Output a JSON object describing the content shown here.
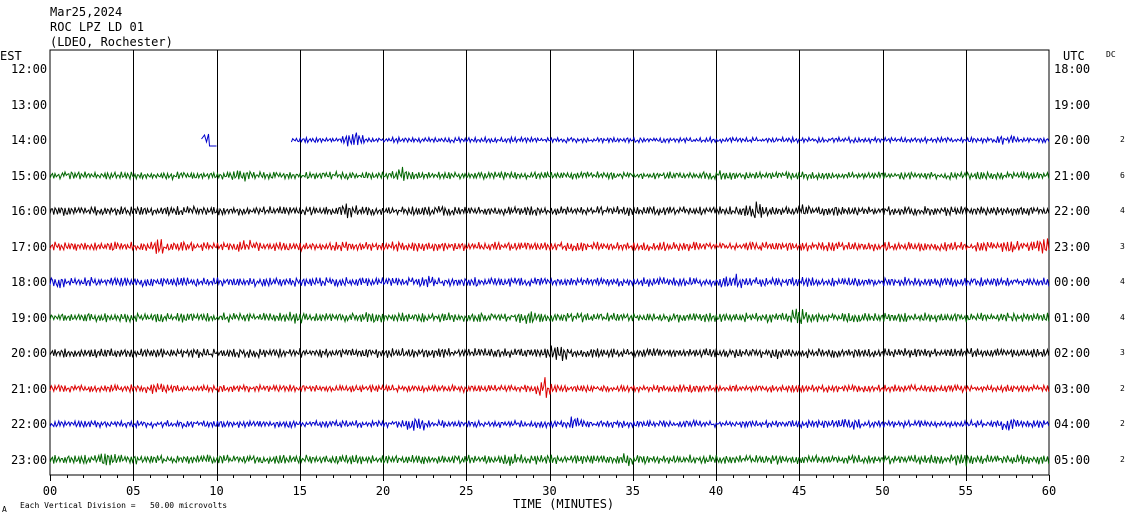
{
  "header": {
    "date": "Mar25,2024",
    "station": "ROC LPZ LD 01",
    "network": "(LDEO, Rochester)"
  },
  "left_axis_title": "EST",
  "right_axis_title": "UTC",
  "dc_label": "DC",
  "footer": {
    "corner_mark": "A",
    "scale_note": "Each Vertical Division =   50.00 microvolts"
  },
  "chart_data": {
    "type": "line",
    "title": "ROC LPZ LD 01",
    "xlabel": "TIME (MINUTES)",
    "xlim": [
      0,
      60
    ],
    "x_ticks": [
      "00",
      "05",
      "10",
      "15",
      "20",
      "25",
      "30",
      "35",
      "40",
      "45",
      "50",
      "55",
      "60"
    ],
    "grid": true,
    "trace_colors": [
      "#0000cc",
      "#006600",
      "#000000",
      "#dd0000"
    ],
    "rows": [
      {
        "est": "12:00",
        "utc": "18:00",
        "count": "",
        "color": "",
        "start": null,
        "end": null,
        "amplitude": 0,
        "events": []
      },
      {
        "est": "13:00",
        "utc": "19:00",
        "count": "",
        "color": "",
        "start": null,
        "end": null,
        "amplitude": 0,
        "events": []
      },
      {
        "est": "14:00",
        "utc": "20:00",
        "count": "2",
        "color": "#0000cc",
        "start": 14.5,
        "end": 60,
        "amplitude": 3,
        "segments": [
          [
            9.1,
            10.0
          ]
        ],
        "events": [
          [
            18.2,
            10
          ],
          [
            57.5,
            6
          ]
        ]
      },
      {
        "est": "15:00",
        "utc": "21:00",
        "count": "6",
        "color": "#006600",
        "start": 0,
        "end": 60,
        "amplitude": 4,
        "events": [
          [
            21.2,
            9
          ],
          [
            11.5,
            7
          ],
          [
            40.5,
            6
          ]
        ]
      },
      {
        "est": "16:00",
        "utc": "22:00",
        "count": "4",
        "color": "#000000",
        "start": 0,
        "end": 60,
        "amplitude": 5,
        "events": [
          [
            42.5,
            11
          ],
          [
            17.8,
            8
          ],
          [
            45.2,
            7
          ]
        ]
      },
      {
        "est": "17:00",
        "utc": "23:00",
        "count": "3",
        "color": "#dd0000",
        "start": 0,
        "end": 60,
        "amplitude": 5,
        "events": [
          [
            6.5,
            9
          ],
          [
            11.7,
            10
          ],
          [
            57.5,
            8
          ],
          [
            59.8,
            9
          ]
        ]
      },
      {
        "est": "18:00",
        "utc": "00:00",
        "count": "4",
        "color": "#0000cc",
        "start": 0,
        "end": 60,
        "amplitude": 5,
        "events": [
          [
            40.9,
            11
          ],
          [
            22.8,
            8
          ],
          [
            0.5,
            7
          ]
        ]
      },
      {
        "est": "19:00",
        "utc": "01:00",
        "count": "4",
        "color": "#006600",
        "start": 0,
        "end": 60,
        "amplitude": 5,
        "events": [
          [
            45.0,
            11
          ],
          [
            14.8,
            8
          ],
          [
            28.5,
            8
          ],
          [
            19.5,
            7
          ]
        ]
      },
      {
        "est": "20:00",
        "utc": "02:00",
        "count": "3",
        "color": "#000000",
        "start": 0,
        "end": 60,
        "amplitude": 5,
        "events": [
          [
            30.5,
            11
          ],
          [
            43.8,
            7
          ]
        ]
      },
      {
        "est": "21:00",
        "utc": "03:00",
        "count": "2",
        "color": "#dd0000",
        "start": 0,
        "end": 60,
        "amplitude": 4,
        "events": [
          [
            29.7,
            13
          ],
          [
            6.3,
            7
          ],
          [
            38.2,
            6
          ]
        ]
      },
      {
        "est": "22:00",
        "utc": "04:00",
        "count": "2",
        "color": "#0000cc",
        "start": 0,
        "end": 60,
        "amplitude": 4,
        "events": [
          [
            22.0,
            10
          ],
          [
            31.5,
            9
          ],
          [
            48.0,
            7
          ],
          [
            57.5,
            8
          ]
        ]
      },
      {
        "est": "23:00",
        "utc": "05:00",
        "count": "2",
        "color": "#006600",
        "start": 0,
        "end": 60,
        "amplitude": 5,
        "events": [
          [
            3.5,
            8
          ],
          [
            27.8,
            9
          ],
          [
            34.5,
            8
          ],
          [
            55.0,
            8
          ]
        ]
      }
    ]
  }
}
